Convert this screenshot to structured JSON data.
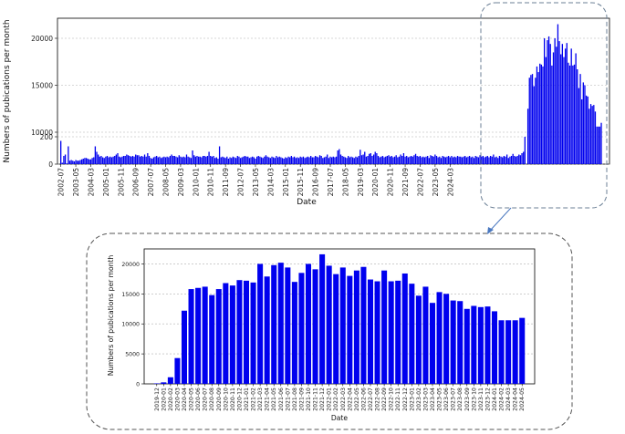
{
  "chart_data": [
    {
      "type": "bar",
      "xlabel": "Date",
      "ylabel": "Numbers of pubications per month",
      "y_tick_labels": [
        "0",
        "200",
        "10000",
        "15000",
        "20000"
      ],
      "x_tick_labels": [
        "2002-07",
        "2003-05",
        "2004-03",
        "2005-01",
        "2005-11",
        "2006-09",
        "2007-07",
        "2008-05",
        "2009-03",
        "2010-01",
        "2010-11",
        "2011-09",
        "2012-07",
        "2013-05",
        "2014-03",
        "2015-01",
        "2015-11",
        "2016-09",
        "2017-07",
        "2018-05",
        "2019-03",
        "2020-01",
        "2020-11",
        "2021-09",
        "2022-07",
        "2023-05",
        "2024-03"
      ],
      "scale": "broken y-axis: 0-200 linear at bottom, 10000-20000 linear above",
      "bar_color": "#0000ee",
      "grid": true,
      "x_start": "2002-07",
      "values": [
        170,
        10,
        60,
        70,
        5,
        130,
        25,
        30,
        25,
        20,
        30,
        25,
        25,
        30,
        35,
        40,
        45,
        45,
        40,
        35,
        35,
        45,
        50,
        130,
        90,
        70,
        55,
        60,
        50,
        45,
        55,
        60,
        50,
        55,
        50,
        55,
        60,
        70,
        80,
        55,
        50,
        55,
        60,
        60,
        70,
        65,
        60,
        55,
        60,
        55,
        70,
        65,
        65,
        55,
        60,
        55,
        70,
        55,
        80,
        60,
        45,
        40,
        50,
        55,
        60,
        50,
        55,
        45,
        50,
        55,
        50,
        55,
        50,
        60,
        70,
        60,
        60,
        55,
        50,
        65,
        55,
        50,
        55,
        50,
        70,
        55,
        50,
        45,
        100,
        65,
        55,
        60,
        55,
        55,
        50,
        60,
        60,
        55,
        60,
        90,
        60,
        55,
        60,
        45,
        50,
        40,
        130,
        50,
        55,
        50,
        45,
        55,
        40,
        50,
        45,
        55,
        50,
        45,
        60,
        55,
        45,
        50,
        55,
        60,
        55,
        55,
        45,
        50,
        55,
        50,
        40,
        55,
        60,
        55,
        50,
        45,
        55,
        65,
        55,
        50,
        45,
        55,
        50,
        45,
        60,
        50,
        55,
        50,
        45,
        40,
        50,
        45,
        55,
        50,
        60,
        50,
        55,
        45,
        50,
        45,
        55,
        50,
        55,
        45,
        50,
        55,
        50,
        60,
        50,
        50,
        60,
        55,
        50,
        65,
        60,
        45,
        50,
        55,
        70,
        45,
        55,
        50,
        55,
        50,
        55,
        100,
        110,
        70,
        60,
        55,
        50,
        45,
        60,
        50,
        55,
        50,
        45,
        55,
        50,
        60,
        105,
        65,
        70,
        90,
        55,
        60,
        75,
        80,
        60,
        70,
        90,
        80,
        60,
        50,
        55,
        60,
        50,
        55,
        60,
        65,
        55,
        60,
        50,
        55,
        65,
        50,
        55,
        70,
        60,
        80,
        55,
        60,
        50,
        55,
        60,
        55,
        65,
        75,
        60,
        55,
        60,
        50,
        55,
        50,
        55,
        60,
        45,
        65,
        60,
        55,
        70,
        60,
        50,
        55,
        45,
        60,
        55,
        50,
        55,
        60,
        50,
        60,
        50,
        55,
        50,
        60,
        55,
        55,
        50,
        55,
        60,
        50,
        55,
        60,
        50,
        55,
        45,
        60,
        55,
        50,
        65,
        55,
        60,
        50,
        55,
        60,
        50,
        60,
        55,
        70,
        50,
        55,
        45,
        60,
        55,
        50,
        60,
        55,
        70,
        45,
        55,
        60,
        75,
        60,
        55,
        60,
        70,
        65,
        80,
        90,
        200,
        300,
        12500,
        15800,
        16100,
        16200,
        14900,
        15800,
        17000,
        16400,
        17300,
        17200,
        17000,
        20000,
        18000,
        19800,
        20200,
        19400,
        17100,
        18500,
        20000,
        19100,
        21500,
        19700,
        18300,
        19400,
        18000,
        18900,
        19500,
        17400,
        17100,
        18900,
        17100,
        17200,
        18400,
        16700,
        14700,
        16200,
        13500,
        15300,
        15000,
        13900,
        13800,
        12500,
        13000,
        12800,
        12900,
        12200,
        10600,
        10600,
        10600,
        11000
      ]
    },
    {
      "type": "bar",
      "xlabel": "Date",
      "ylabel": "Numbers of pubications per month",
      "ylim": [
        0,
        22500
      ],
      "y_tick_labels": [
        "0",
        "5000",
        "10000",
        "15000",
        "20000"
      ],
      "bar_color": "#0000ee",
      "grid": true,
      "categories": [
        "2019-12",
        "2020-01",
        "2020-02",
        "2020-03",
        "2020-04",
        "2020-05",
        "2020-06",
        "2020-07",
        "2020-08",
        "2020-09",
        "2020-10",
        "2020-11",
        "2020-12",
        "2021-01",
        "2021-02",
        "2021-03",
        "2021-04",
        "2021-05",
        "2021-06",
        "2021-07",
        "2021-08",
        "2021-09",
        "2021-10",
        "2021-11",
        "2021-12",
        "2022-01",
        "2022-02",
        "2022-03",
        "2022-04",
        "2022-05",
        "2022-06",
        "2022-07",
        "2022-08",
        "2022-09",
        "2022-10",
        "2022-11",
        "2022-12",
        "2023-01",
        "2023-02",
        "2023-03",
        "2023-04",
        "2023-05",
        "2023-06",
        "2023-07",
        "2023-08",
        "2023-09",
        "2023-10",
        "2023-11",
        "2023-12",
        "2024-01",
        "2024-02",
        "2024-03",
        "2024-04",
        "2024-05"
      ],
      "values": [
        80,
        250,
        1100,
        4300,
        12200,
        15800,
        16000,
        16200,
        14800,
        15800,
        16800,
        16400,
        17300,
        17200,
        16900,
        20000,
        17900,
        19800,
        20200,
        19400,
        17000,
        18500,
        20000,
        19100,
        21600,
        19700,
        18300,
        19400,
        18000,
        18900,
        19500,
        17400,
        17100,
        18900,
        17100,
        17200,
        18400,
        16700,
        14700,
        16200,
        13500,
        15300,
        15000,
        13900,
        13800,
        12500,
        13000,
        12800,
        12900,
        12100,
        10600,
        10600,
        10600,
        11000
      ]
    }
  ]
}
